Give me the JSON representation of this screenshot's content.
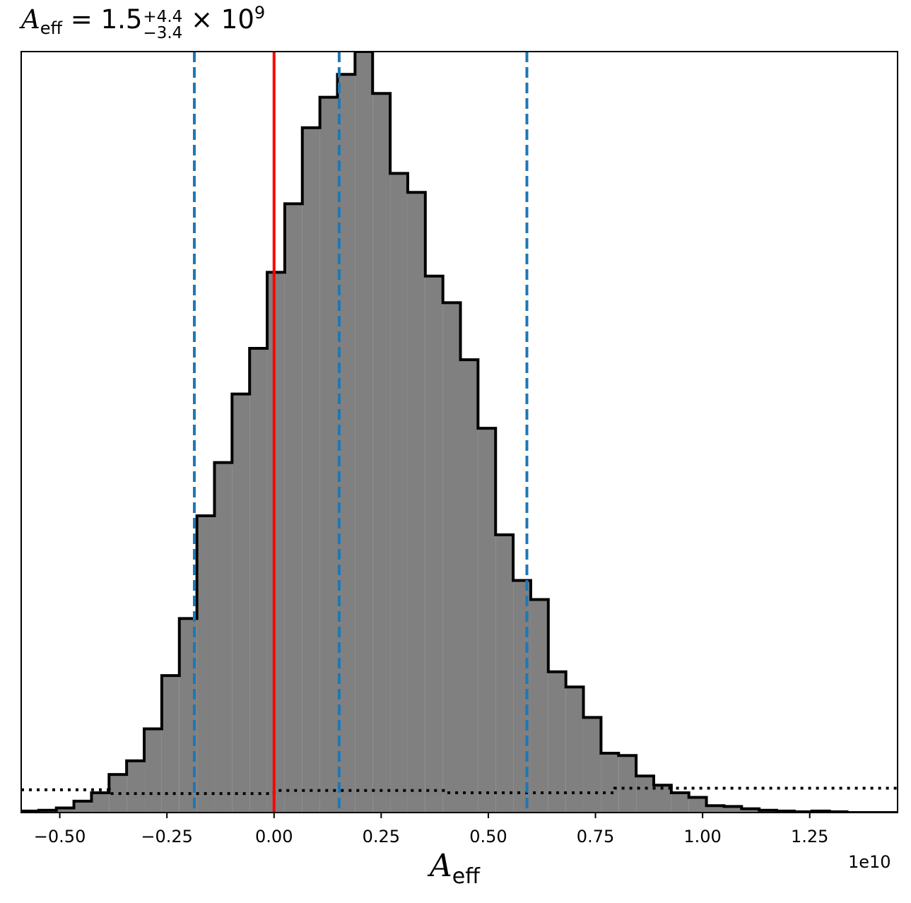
{
  "chart_data": {
    "type": "histogram",
    "title": {
      "symbol": "A",
      "symbol_sub": "eff",
      "eq": " = 1.5",
      "sup": "+4.4",
      "sub": "−3.4",
      "times": " × 10",
      "exp": "9"
    },
    "xlabel": {
      "symbol": "A",
      "sub": "eff"
    },
    "offset_text": "1e10",
    "xlim": [
      -0.59,
      1.455
    ],
    "ylim": [
      0,
      1.0
    ],
    "xticks": [
      -0.5,
      -0.25,
      0.0,
      0.25,
      0.5,
      0.75,
      1.0,
      1.25
    ],
    "xtick_labels": [
      "−0.50",
      "−0.25",
      "0.00",
      "0.25",
      "0.50",
      "0.75",
      "1.00",
      "1.25"
    ],
    "bin_edges": [
      -0.59,
      -0.549,
      -0.508,
      -0.467,
      -0.426,
      -0.385,
      -0.344,
      -0.303,
      -0.262,
      -0.221,
      -0.18,
      -0.139,
      -0.098,
      -0.057,
      -0.016,
      0.025,
      0.066,
      0.107,
      0.148,
      0.189,
      0.23,
      0.271,
      0.312,
      0.353,
      0.394,
      0.435,
      0.476,
      0.517,
      0.558,
      0.599,
      0.64,
      0.681,
      0.722,
      0.763,
      0.804,
      0.845,
      0.886,
      0.927,
      0.968,
      1.009,
      1.05,
      1.091,
      1.132,
      1.173,
      1.214,
      1.255,
      1.296,
      1.337,
      1.378,
      1.419,
      1.455
    ],
    "counts": [
      0.002,
      0.003,
      0.006,
      0.015,
      0.026,
      0.05,
      0.068,
      0.11,
      0.18,
      0.255,
      0.39,
      0.46,
      0.55,
      0.61,
      0.71,
      0.8,
      0.9,
      0.94,
      0.97,
      1.0,
      0.945,
      0.84,
      0.815,
      0.705,
      0.67,
      0.595,
      0.505,
      0.365,
      0.305,
      0.28,
      0.185,
      0.165,
      0.125,
      0.078,
      0.075,
      0.048,
      0.036,
      0.026,
      0.02,
      0.009,
      0.008,
      0.005,
      0.003,
      0.002,
      0.001,
      0.002,
      0.001,
      0.0,
      0.0,
      0.0
    ],
    "prior_edges": [
      -0.59,
      -0.384,
      0.0,
      0.4,
      0.795,
      1.455
    ],
    "prior_values": [
      0.03,
      0.025,
      0.029,
      0.026,
      0.032
    ],
    "vlines": [
      {
        "x": -0.186,
        "color": "#1f77b4",
        "style": "dashed"
      },
      {
        "x": 0.152,
        "color": "#1f77b4",
        "style": "dashed"
      },
      {
        "x": 0.59,
        "color": "#1f77b4",
        "style": "dashed"
      },
      {
        "x": 0.0,
        "color": "#ff0000",
        "style": "solid"
      }
    ],
    "fill_color": "#808080",
    "edge_color": "#000000"
  }
}
